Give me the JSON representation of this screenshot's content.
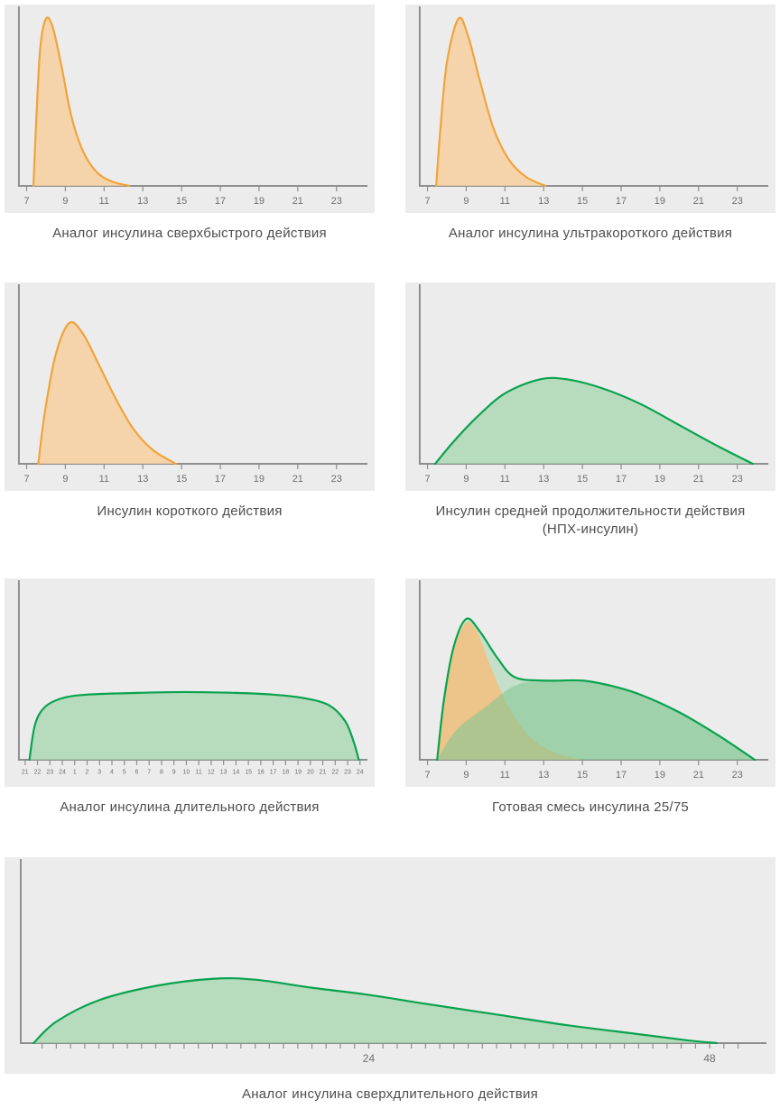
{
  "page": {
    "background": "#FFFFFF",
    "panel_background": "#ECECEC",
    "axis_color": "#8E8E8E",
    "tick_label_color": "#6E6E6E",
    "caption_color": "#4D4D4D",
    "orange": "#F1A33C",
    "orange_fill": "#F8D0A0",
    "green": "#09A24E",
    "green_fill": "#A6D5AE"
  },
  "chart_data": [
    {
      "type": "area",
      "caption": "Аналог инсулина сверхбыстрого действия",
      "x_min": 6.6,
      "x_max": 24.6,
      "ylim": [
        0,
        1
      ],
      "tick_font": 11,
      "ticks": [
        [
          7,
          "7"
        ],
        [
          9,
          "9"
        ],
        [
          11,
          "11"
        ],
        [
          13,
          "13"
        ],
        [
          15,
          "15"
        ],
        [
          17,
          "17"
        ],
        [
          19,
          "19"
        ],
        [
          21,
          "21"
        ],
        [
          23,
          "23"
        ]
      ],
      "series": [
        {
          "name": "ultra-rapid-insulin-activity",
          "stroke": "#F1A33C",
          "stroke_width": 2.2,
          "fill": "#F8D0A0",
          "fill_opacity": 0.85,
          "points": [
            [
              7.35,
              0
            ],
            [
              7.5,
              0.38
            ],
            [
              7.7,
              0.78
            ],
            [
              8.0,
              0.95
            ],
            [
              8.35,
              0.9
            ],
            [
              8.8,
              0.68
            ],
            [
              9.3,
              0.4
            ],
            [
              9.9,
              0.2
            ],
            [
              10.6,
              0.08
            ],
            [
              11.4,
              0.025
            ],
            [
              12.3,
              0
            ]
          ]
        }
      ]
    },
    {
      "type": "area",
      "caption": "Аналог инсулина ультракороткого действия",
      "x_min": 6.6,
      "x_max": 24.6,
      "ylim": [
        0,
        1
      ],
      "tick_font": 11,
      "ticks": [
        [
          7,
          "7"
        ],
        [
          9,
          "9"
        ],
        [
          11,
          "11"
        ],
        [
          13,
          "13"
        ],
        [
          15,
          "15"
        ],
        [
          17,
          "17"
        ],
        [
          19,
          "19"
        ],
        [
          21,
          "21"
        ],
        [
          23,
          "23"
        ]
      ],
      "series": [
        {
          "name": "ultra-short-insulin-activity",
          "stroke": "#F1A33C",
          "stroke_width": 2.2,
          "fill": "#F8D0A0",
          "fill_opacity": 0.85,
          "points": [
            [
              7.45,
              0
            ],
            [
              7.65,
              0.3
            ],
            [
              8.0,
              0.7
            ],
            [
              8.6,
              0.95
            ],
            [
              9.1,
              0.85
            ],
            [
              9.7,
              0.6
            ],
            [
              10.4,
              0.33
            ],
            [
              11.2,
              0.15
            ],
            [
              12.1,
              0.05
            ],
            [
              13.1,
              0
            ]
          ]
        }
      ]
    },
    {
      "type": "area",
      "caption": "Инсулин короткого действия",
      "x_min": 6.6,
      "x_max": 24.6,
      "ylim": [
        0,
        1
      ],
      "tick_font": 11,
      "ticks": [
        [
          7,
          "7"
        ],
        [
          9,
          "9"
        ],
        [
          11,
          "11"
        ],
        [
          13,
          "13"
        ],
        [
          15,
          "15"
        ],
        [
          17,
          "17"
        ],
        [
          19,
          "19"
        ],
        [
          21,
          "21"
        ],
        [
          23,
          "23"
        ]
      ],
      "series": [
        {
          "name": "short-insulin-activity",
          "stroke": "#F1A33C",
          "stroke_width": 2.2,
          "fill": "#F8D0A0",
          "fill_opacity": 0.85,
          "points": [
            [
              7.6,
              0
            ],
            [
              7.95,
              0.3
            ],
            [
              8.5,
              0.62
            ],
            [
              9.2,
              0.8
            ],
            [
              9.9,
              0.74
            ],
            [
              10.7,
              0.57
            ],
            [
              11.6,
              0.37
            ],
            [
              12.5,
              0.2
            ],
            [
              13.5,
              0.08
            ],
            [
              14.7,
              0
            ]
          ]
        }
      ]
    },
    {
      "type": "area",
      "caption": "Инсулин средней продолжительности действия (НПХ-инсулин)",
      "x_min": 6.6,
      "x_max": 24.6,
      "ylim": [
        0,
        1
      ],
      "tick_font": 11,
      "ticks": [
        [
          7,
          "7"
        ],
        [
          9,
          "9"
        ],
        [
          11,
          "11"
        ],
        [
          13,
          "13"
        ],
        [
          15,
          "15"
        ],
        [
          17,
          "17"
        ],
        [
          19,
          "19"
        ],
        [
          21,
          "21"
        ],
        [
          23,
          "23"
        ]
      ],
      "series": [
        {
          "name": "nph-insulin-activity",
          "stroke": "#09A24E",
          "stroke_width": 2.2,
          "fill": "#A6D5AE",
          "fill_opacity": 0.75,
          "points": [
            [
              7.4,
              0
            ],
            [
              8.3,
              0.12
            ],
            [
              9.5,
              0.26
            ],
            [
              11.0,
              0.4
            ],
            [
              12.8,
              0.48
            ],
            [
              14.2,
              0.48
            ],
            [
              16.0,
              0.43
            ],
            [
              18.0,
              0.34
            ],
            [
              20.0,
              0.22
            ],
            [
              22.0,
              0.1
            ],
            [
              23.8,
              0
            ]
          ]
        }
      ]
    },
    {
      "type": "area",
      "caption": "Аналог инсулина длительного действия",
      "x_min": -0.5,
      "x_max": 27.6,
      "ylim": [
        0,
        1
      ],
      "tick_font": 7,
      "ticks": [
        [
          0,
          "21"
        ],
        [
          1,
          "22"
        ],
        [
          2,
          "23"
        ],
        [
          3,
          "24"
        ],
        [
          4,
          "1"
        ],
        [
          5,
          "2"
        ],
        [
          6,
          "3"
        ],
        [
          7,
          "4"
        ],
        [
          8,
          "5"
        ],
        [
          9,
          "6"
        ],
        [
          10,
          "7"
        ],
        [
          11,
          "8"
        ],
        [
          12,
          "9"
        ],
        [
          13,
          "10"
        ],
        [
          14,
          "11"
        ],
        [
          15,
          "12"
        ],
        [
          16,
          "13"
        ],
        [
          17,
          "14"
        ],
        [
          18,
          "15"
        ],
        [
          19,
          "16"
        ],
        [
          20,
          "17"
        ],
        [
          21,
          "18"
        ],
        [
          22,
          "19"
        ],
        [
          23,
          "20"
        ],
        [
          24,
          "21"
        ],
        [
          25,
          "22"
        ],
        [
          26,
          "23"
        ],
        [
          27,
          "24"
        ]
      ],
      "series": [
        {
          "name": "long-acting-insulin-activity",
          "stroke": "#09A24E",
          "stroke_width": 2.2,
          "fill": "#A6D5AE",
          "fill_opacity": 0.75,
          "points": [
            [
              0.35,
              0
            ],
            [
              0.8,
              0.2
            ],
            [
              1.6,
              0.3
            ],
            [
              3.0,
              0.35
            ],
            [
              5.0,
              0.37
            ],
            [
              9.0,
              0.38
            ],
            [
              13.0,
              0.385
            ],
            [
              17.0,
              0.38
            ],
            [
              20.0,
              0.37
            ],
            [
              22.5,
              0.35
            ],
            [
              24.5,
              0.31
            ],
            [
              25.8,
              0.22
            ],
            [
              26.5,
              0.1
            ],
            [
              26.9,
              0
            ]
          ]
        }
      ]
    },
    {
      "type": "area",
      "caption": "Готовая смесь инсулина 25/75",
      "x_min": 6.6,
      "x_max": 24.6,
      "ylim": [
        0,
        1
      ],
      "tick_font": 11,
      "ticks": [
        [
          7,
          "7"
        ],
        [
          9,
          "9"
        ],
        [
          11,
          "11"
        ],
        [
          13,
          "13"
        ],
        [
          15,
          "15"
        ],
        [
          17,
          "17"
        ],
        [
          19,
          "19"
        ],
        [
          21,
          "21"
        ],
        [
          23,
          "23"
        ]
      ],
      "series": [
        {
          "name": "premix-combined-underfill",
          "stroke": "none",
          "fill": "#9ED3A8",
          "fill_opacity": 0.5,
          "points": [
            [
              7.5,
              0
            ],
            [
              7.85,
              0.34
            ],
            [
              8.35,
              0.64
            ],
            [
              9.0,
              0.8
            ],
            [
              9.7,
              0.73
            ],
            [
              10.6,
              0.58
            ],
            [
              11.5,
              0.47
            ],
            [
              13.0,
              0.45
            ],
            [
              15.0,
              0.45
            ],
            [
              16.5,
              0.42
            ],
            [
              18.0,
              0.37
            ],
            [
              20.0,
              0.27
            ],
            [
              22.0,
              0.14
            ],
            [
              23.9,
              0
            ]
          ]
        },
        {
          "name": "premix-rapid-component-25",
          "stroke": "none",
          "fill": "#F3BE7E",
          "fill_opacity": 0.85,
          "points": [
            [
              7.5,
              0
            ],
            [
              7.85,
              0.32
            ],
            [
              8.35,
              0.62
            ],
            [
              9.0,
              0.78
            ],
            [
              9.6,
              0.72
            ],
            [
              10.3,
              0.52
            ],
            [
              11.2,
              0.3
            ],
            [
              12.3,
              0.13
            ],
            [
              13.6,
              0.04
            ],
            [
              15.0,
              0
            ]
          ]
        },
        {
          "name": "premix-basal-component-75",
          "stroke": "none",
          "fill": "#86C694",
          "fill_opacity": 0.6,
          "points": [
            [
              7.5,
              0
            ],
            [
              8.5,
              0.17
            ],
            [
              10.0,
              0.3
            ],
            [
              11.5,
              0.42
            ],
            [
              13.0,
              0.45
            ],
            [
              15.0,
              0.45
            ],
            [
              16.5,
              0.42
            ],
            [
              18.0,
              0.37
            ],
            [
              20.0,
              0.27
            ],
            [
              22.0,
              0.14
            ],
            [
              23.9,
              0
            ]
          ]
        },
        {
          "name": "premix-combined-outline",
          "stroke": "#09A24E",
          "stroke_width": 2.2,
          "fill": "none",
          "points": [
            [
              7.5,
              0
            ],
            [
              7.85,
              0.34
            ],
            [
              8.35,
              0.64
            ],
            [
              9.0,
              0.8
            ],
            [
              9.7,
              0.73
            ],
            [
              10.6,
              0.58
            ],
            [
              11.5,
              0.47
            ],
            [
              13.0,
              0.45
            ],
            [
              15.0,
              0.45
            ],
            [
              16.5,
              0.42
            ],
            [
              18.0,
              0.37
            ],
            [
              20.0,
              0.27
            ],
            [
              22.0,
              0.14
            ],
            [
              23.9,
              0
            ]
          ]
        }
      ]
    },
    {
      "type": "area",
      "caption": "Аналог инсулина сверхдлительного действия",
      "x_min": -0.5,
      "x_max": 52,
      "ylim": [
        0,
        1
      ],
      "tick_font": 12,
      "margins": {
        "l": 18,
        "r": 10,
        "t": 8,
        "b": 34
      },
      "minor_ticks": {
        "from": 1,
        "to": 50,
        "step": 1
      },
      "ticks": [
        [
          24,
          "24"
        ],
        [
          48,
          "48"
        ]
      ],
      "series": [
        {
          "name": "ultra-long-insulin-activity",
          "stroke": "#09A24E",
          "stroke_width": 2.2,
          "fill": "#A6D5AE",
          "fill_opacity": 0.75,
          "points": [
            [
              0.4,
              0
            ],
            [
              2.0,
              0.12
            ],
            [
              5.0,
              0.24
            ],
            [
              9.0,
              0.32
            ],
            [
              13.0,
              0.36
            ],
            [
              16.0,
              0.355
            ],
            [
              20.0,
              0.31
            ],
            [
              24.0,
              0.27
            ],
            [
              28.0,
              0.22
            ],
            [
              33.0,
              0.16
            ],
            [
              38.0,
              0.1
            ],
            [
              43.0,
              0.05
            ],
            [
              46.5,
              0.015
            ],
            [
              48.5,
              0
            ]
          ]
        }
      ]
    }
  ]
}
